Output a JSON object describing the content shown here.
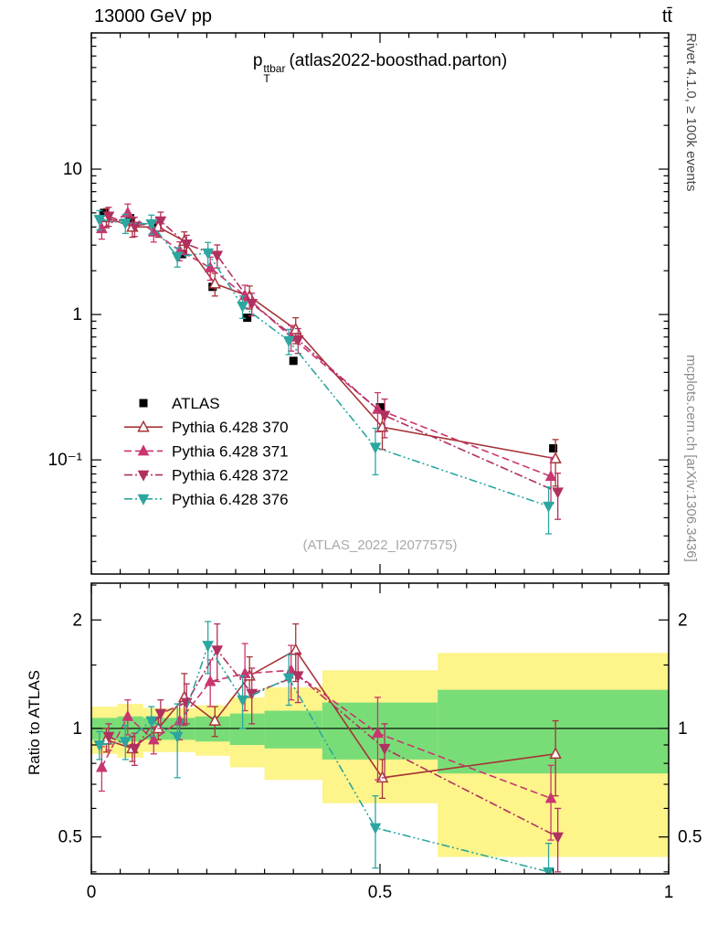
{
  "header": {
    "left": "13000 GeV pp",
    "right": "tt̄"
  },
  "side_texts": {
    "rivet": "Rivet 4.1.0, ≥ 100k events",
    "mcplots": "mcplots.cern.ch [arXiv:1306.3436]"
  },
  "watermark": "(ATLAS_2022_I2077575)",
  "title_parts": {
    "base": "p",
    "sup": "ttbar",
    "sub": "T",
    "rest": "(atlas2022-boosthad.parton)"
  },
  "colors": {
    "atlas": "#000000",
    "pythia370": "#a63437",
    "pythia371": "#c9366f",
    "pythia372": "#b03060",
    "pythia376": "#2ba6a0",
    "band_outer_yellow": "#fdf48a",
    "band_inner_green": "#79dd77"
  },
  "chart_data": {
    "type": "line",
    "title": "p_T^ttbar (atlas2022-boosthad.parton)",
    "xlabel": "",
    "xlim": [
      0,
      1
    ],
    "xticks": [
      {
        "v": 0,
        "label": "0"
      },
      {
        "v": 0.5,
        "label": "0.5"
      },
      {
        "v": 1,
        "label": "1"
      }
    ],
    "x_minor_step": 0.05,
    "x": [
      0.022,
      0.067,
      0.112,
      0.157,
      0.21,
      0.27,
      0.35,
      0.5,
      0.8
    ],
    "main_panel": {
      "yscale": "log",
      "ylim": [
        0.0164,
        86.5
      ],
      "yticks": [
        {
          "v": 10,
          "label": "10"
        },
        {
          "v": 1,
          "label": "1"
        },
        {
          "v": 0.1,
          "label": "10⁻¹"
        }
      ],
      "series": [
        {
          "name": "ATLAS",
          "color": "#000000",
          "marker": "square",
          "line": "none",
          "x_offset": 0,
          "y": [
            5.0,
            4.6,
            4.0,
            2.6,
            1.55,
            0.95,
            0.48,
            0.23,
            0.12
          ],
          "yerr": [
            0.25,
            0.23,
            0.2,
            0.13,
            0.08,
            0.05,
            0.024,
            0.012,
            0.006
          ]
        },
        {
          "name": "Pythia 6.428 370",
          "color": "#a63437",
          "marker": "triangle-up-open",
          "line": "solid",
          "x_offset": 0.004,
          "y": [
            4.65,
            4.0,
            4.0,
            3.2,
            1.63,
            1.33,
            0.79,
            0.168,
            0.102
          ],
          "yerr": [
            0.7,
            0.6,
            0.6,
            0.5,
            0.29,
            0.24,
            0.16,
            0.05,
            0.036
          ]
        },
        {
          "name": "Pythia 6.428 371",
          "color": "#c9366f",
          "marker": "triangle-up",
          "line": "dashed",
          "x_offset": -0.004,
          "y": [
            3.9,
            5.0,
            3.7,
            2.75,
            2.1,
            1.35,
            0.7,
            0.223,
            0.077
          ],
          "yerr": [
            0.6,
            0.75,
            0.55,
            0.41,
            0.38,
            0.24,
            0.14,
            0.067,
            0.027
          ]
        },
        {
          "name": "Pythia 6.428 372",
          "color": "#b03060",
          "marker": "triangle-down",
          "line": "dashdot",
          "x_offset": 0.008,
          "y": [
            4.75,
            4.05,
            4.4,
            3.05,
            2.55,
            1.19,
            0.67,
            0.202,
            0.06
          ],
          "yerr": [
            0.71,
            0.61,
            0.66,
            0.46,
            0.46,
            0.21,
            0.13,
            0.06,
            0.021
          ]
        },
        {
          "name": "Pythia 6.428 376",
          "color": "#2ba6a0",
          "marker": "triangle-down",
          "line": "dashdotdot",
          "x_offset": -0.008,
          "y": [
            4.5,
            4.25,
            4.2,
            2.5,
            2.65,
            1.14,
            0.66,
            0.122,
            0.048
          ],
          "yerr": [
            0.68,
            0.64,
            0.63,
            0.38,
            0.48,
            0.2,
            0.13,
            0.043,
            0.017
          ]
        }
      ]
    },
    "ratio_panel": {
      "ylabel": "Ratio to ATLAS",
      "yscale": "log",
      "ylim": [
        0.395,
        2.53
      ],
      "yticks": [
        {
          "v": 0.5,
          "label": "0.5"
        },
        {
          "v": 1,
          "label": "1"
        },
        {
          "v": 2,
          "label": "2"
        }
      ],
      "reference": 1,
      "band_colors": {
        "outer": "#fdf48a",
        "inner": "#79dd77"
      },
      "band_edges": [
        0,
        0.045,
        0.09,
        0.135,
        0.18,
        0.24,
        0.3,
        0.4,
        0.6,
        1.0
      ],
      "yellow_lo": [
        0.85,
        0.83,
        0.86,
        0.86,
        0.84,
        0.78,
        0.72,
        0.62,
        0.44
      ],
      "yellow_hi": [
        1.15,
        1.17,
        1.14,
        1.14,
        1.16,
        1.22,
        1.3,
        1.45,
        1.62
      ],
      "green_lo": [
        0.93,
        0.92,
        0.93,
        0.93,
        0.92,
        0.9,
        0.88,
        0.82,
        0.75
      ],
      "green_hi": [
        1.07,
        1.08,
        1.07,
        1.07,
        1.08,
        1.1,
        1.12,
        1.18,
        1.28
      ],
      "series": [
        {
          "name": "Pythia 6.428 370",
          "ratio": [
            0.93,
            0.88,
            1.0,
            1.22,
            1.05,
            1.4,
            1.65,
            0.73,
            0.85
          ],
          "ratio_err": [
            0.07,
            0.07,
            0.07,
            0.2,
            0.1,
            0.18,
            0.3,
            0.09,
            0.2
          ]
        },
        {
          "name": "Pythia 6.428 371",
          "ratio": [
            0.78,
            1.08,
            0.93,
            1.05,
            1.35,
            1.42,
            1.45,
            0.97,
            0.64
          ],
          "ratio_err": [
            0.11,
            0.12,
            0.08,
            0.12,
            0.2,
            0.3,
            0.25,
            0.25,
            0.15
          ]
        },
        {
          "name": "Pythia 6.428 372",
          "ratio": [
            0.95,
            0.88,
            1.1,
            1.18,
            1.65,
            1.25,
            1.4,
            0.88,
            0.5
          ],
          "ratio_err": [
            0.08,
            0.09,
            0.1,
            0.15,
            0.3,
            0.22,
            0.22,
            0.15,
            0.1
          ]
        },
        {
          "name": "Pythia 6.428 376",
          "ratio": [
            0.9,
            0.92,
            1.05,
            0.95,
            1.7,
            1.2,
            1.38,
            0.53,
            0.4
          ],
          "ratio_err": [
            0.08,
            0.1,
            0.1,
            0.22,
            0.28,
            0.2,
            0.22,
            0.12,
            0.08
          ]
        }
      ]
    }
  }
}
